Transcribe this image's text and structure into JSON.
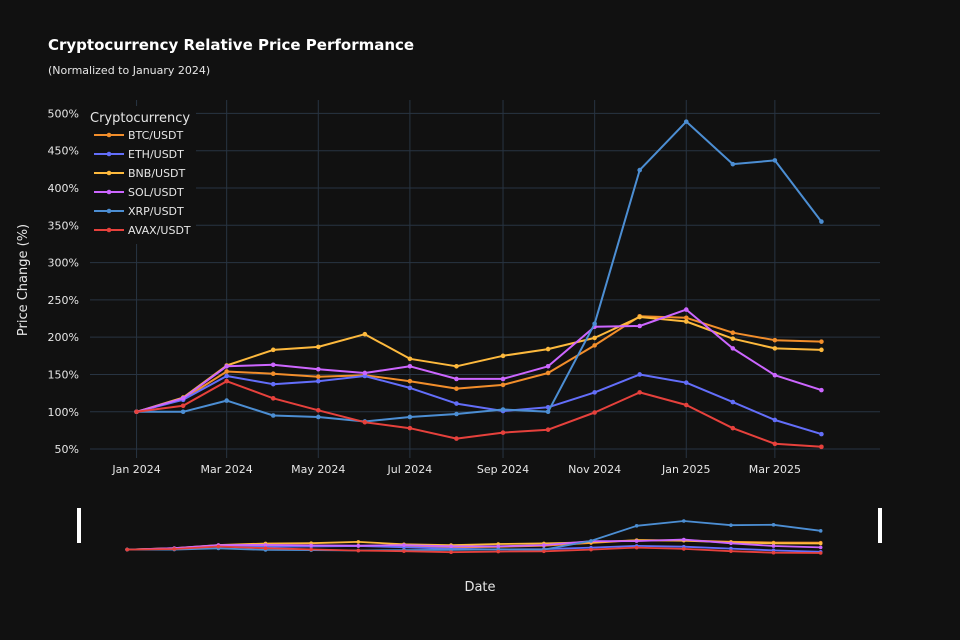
{
  "chart_data": {
    "type": "line",
    "title": "Cryptocurrency Relative Price Performance",
    "subtitle": "(Normalized to January 2024)",
    "xlabel": "Date",
    "ylabel": "Price Change (%)",
    "x": [
      "2024-01-01",
      "2024-02-01",
      "2024-03-01",
      "2024-04-01",
      "2024-05-01",
      "2024-06-01",
      "2024-07-01",
      "2024-08-01",
      "2024-09-01",
      "2024-10-01",
      "2024-11-01",
      "2024-12-01",
      "2025-01-01",
      "2025-02-01",
      "2025-03-01",
      "2025-04-01"
    ],
    "x_ticks": [
      {
        "date": "2024-01-01",
        "label": "Jan 2024"
      },
      {
        "date": "2024-03-01",
        "label": "Mar 2024"
      },
      {
        "date": "2024-05-01",
        "label": "May 2024"
      },
      {
        "date": "2024-07-01",
        "label": "Jul 2024"
      },
      {
        "date": "2024-09-01",
        "label": "Sep 2024"
      },
      {
        "date": "2024-11-01",
        "label": "Nov 2024"
      },
      {
        "date": "2025-01-01",
        "label": "Jan 2025"
      },
      {
        "date": "2025-03-01",
        "label": "Mar 2025"
      }
    ],
    "xlim": [
      "2023-12-01",
      "2025-05-10"
    ],
    "y_ticks": [
      {
        "value": 50,
        "label": "50%"
      },
      {
        "value": 100,
        "label": "100%"
      },
      {
        "value": 150,
        "label": "150%"
      },
      {
        "value": 200,
        "label": "200%"
      },
      {
        "value": 250,
        "label": "250%"
      },
      {
        "value": 300,
        "label": "300%"
      },
      {
        "value": 350,
        "label": "350%"
      },
      {
        "value": 400,
        "label": "400%"
      },
      {
        "value": 450,
        "label": "450%"
      },
      {
        "value": 500,
        "label": "500%"
      }
    ],
    "ylim": [
      38,
      518
    ],
    "grid": true,
    "range_slider": true,
    "legend": {
      "title": "Cryptocurrency",
      "placement": "top-left"
    },
    "series": [
      {
        "name": "BTC/USDT",
        "color": "#f28e2b",
        "values": [
          100,
          117,
          154,
          151,
          147,
          149,
          141,
          131,
          136,
          152,
          189,
          228,
          226,
          206,
          196,
          194
        ]
      },
      {
        "name": "ETH/USDT",
        "color": "#636efa",
        "values": [
          100,
          116,
          148,
          137,
          141,
          148,
          132,
          111,
          101,
          106,
          126,
          150,
          139,
          113,
          89,
          70
        ]
      },
      {
        "name": "BNB/USDT",
        "color": "#fdb93d",
        "values": [
          100,
          119,
          162,
          183,
          187,
          204,
          171,
          161,
          175,
          184,
          199,
          227,
          221,
          198,
          185,
          183
        ]
      },
      {
        "name": "SOL/USDT",
        "color": "#cc66ff",
        "values": [
          100,
          118,
          161,
          163,
          157,
          152,
          161,
          144,
          144,
          161,
          214,
          215,
          237,
          185,
          149,
          129
        ]
      },
      {
        "name": "XRP/USDT",
        "color": "#4c8ed3",
        "values": [
          100,
          100,
          115,
          95,
          93,
          87,
          93,
          97,
          103,
          100,
          218,
          424,
          489,
          432,
          437,
          355
        ]
      },
      {
        "name": "AVAX/USDT",
        "color": "#e6413c",
        "values": [
          100,
          108,
          141,
          118,
          102,
          86,
          78,
          64,
          72,
          76,
          99,
          126,
          109,
          78,
          57,
          53
        ]
      }
    ]
  }
}
